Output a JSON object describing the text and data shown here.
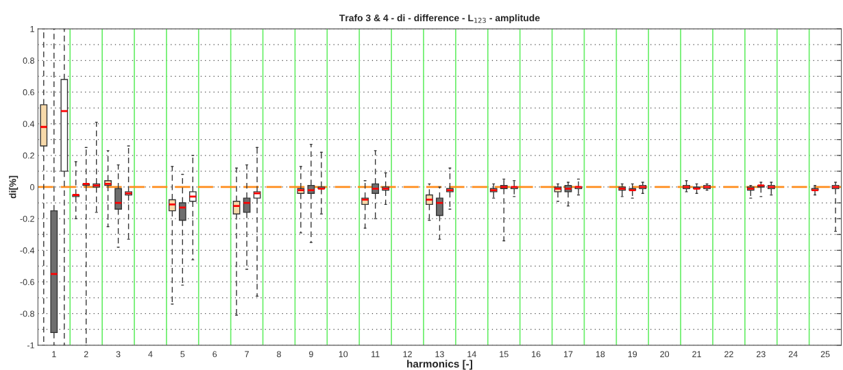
{
  "chart_data": {
    "type": "box",
    "title": "Trafo 3 & 4 - di - difference - L$_{123}$ - amplitude",
    "xlabel": "harmonics [-]",
    "ylabel": "di[%]",
    "categories": [
      "1",
      "2",
      "3",
      "4",
      "5",
      "6",
      "7",
      "8",
      "9",
      "10",
      "11",
      "12",
      "13",
      "14",
      "15",
      "16",
      "17",
      "18",
      "19",
      "20",
      "21",
      "22",
      "23",
      "24",
      "25"
    ],
    "series": [
      {
        "color": "#f7d9aa",
        "boxes": [
          {
            "low": -1,
            "q1": 0.26,
            "median": 0.38,
            "q3": 0.52,
            "high": 1
          },
          {
            "low": -0.2,
            "q1": -0.06,
            "median": -0.05,
            "q3": -0.05,
            "high": 0.16
          },
          {
            "low": -0.25,
            "q1": 0.01,
            "median": 0.02,
            "q3": 0.04,
            "high": 0.23
          },
          null,
          {
            "low": -0.74,
            "q1": -0.15,
            "median": -0.11,
            "q3": -0.08,
            "high": 0.13
          },
          null,
          {
            "low": -0.81,
            "q1": -0.17,
            "median": -0.12,
            "q3": -0.09,
            "high": 0.12
          },
          null,
          {
            "low": -0.29,
            "q1": -0.04,
            "median": -0.02,
            "q3": -0.01,
            "high": 0.13
          },
          null,
          {
            "low": -0.26,
            "q1": -0.11,
            "median": -0.08,
            "q3": -0.07,
            "high": 0.04
          },
          null,
          {
            "low": -0.21,
            "q1": -0.11,
            "median": -0.08,
            "q3": -0.05,
            "high": 0.02
          },
          null,
          {
            "low": -0.07,
            "q1": -0.03,
            "median": -0.02,
            "q3": -0.01,
            "high": 0.02
          },
          null,
          {
            "low": -0.09,
            "q1": -0.03,
            "median": -0.01,
            "q3": 0,
            "high": 0.02
          },
          null,
          {
            "low": -0.06,
            "q1": -0.02,
            "median": -0.01,
            "q3": 0,
            "high": 0.02
          },
          null,
          {
            "low": -0.03,
            "q1": -0.01,
            "median": 0,
            "q3": 0.01,
            "high": 0.04
          },
          null,
          {
            "low": -0.07,
            "q1": -0.02,
            "median": -0.01,
            "q3": 0,
            "high": 0.01
          },
          null,
          {
            "low": -0.05,
            "q1": -0.02,
            "median": -0.02,
            "q3": -0.01,
            "high": 0.01
          }
        ]
      },
      {
        "color": "#6e6e6e",
        "boxes": [
          {
            "low": -1,
            "q1": -0.92,
            "median": -0.55,
            "q3": -0.15,
            "high": 1
          },
          {
            "low": -1,
            "q1": 0.01,
            "median": 0.02,
            "q3": 0.02,
            "high": 0.25
          },
          {
            "low": -0.38,
            "q1": -0.14,
            "median": -0.1,
            "q3": -0.01,
            "high": 0.14
          },
          null,
          {
            "low": -0.62,
            "q1": -0.21,
            "median": -0.13,
            "q3": -0.1,
            "high": 0.08
          },
          null,
          {
            "low": -0.52,
            "q1": -0.16,
            "median": -0.1,
            "q3": -0.07,
            "high": 0.14
          },
          null,
          {
            "low": -0.35,
            "q1": -0.04,
            "median": -0.02,
            "q3": 0.01,
            "high": 0.27
          },
          null,
          {
            "low": -0.2,
            "q1": -0.04,
            "median": -0.01,
            "q3": 0.02,
            "high": 0.23
          },
          null,
          {
            "low": -0.33,
            "q1": -0.18,
            "median": -0.1,
            "q3": -0.07,
            "high": 0
          },
          null,
          {
            "low": -0.34,
            "q1": -0.01,
            "median": 0,
            "q3": 0.01,
            "high": 0.05
          },
          null,
          {
            "low": -0.12,
            "q1": -0.03,
            "median": -0.01,
            "q3": 0.01,
            "high": 0.03
          },
          null,
          {
            "low": -0.07,
            "q1": -0.02,
            "median": -0.02,
            "q3": -0.01,
            "high": 0.02
          },
          null,
          {
            "low": -0.04,
            "q1": -0.01,
            "median": -0.01,
            "q3": 0,
            "high": 0.02
          },
          null,
          {
            "low": -0.06,
            "q1": 0,
            "median": 0.01,
            "q3": 0.01,
            "high": 0.03
          },
          null,
          null
        ]
      },
      {
        "color": "#ffffff",
        "boxes": [
          {
            "low": -1,
            "q1": 0.1,
            "median": 0.48,
            "q3": 0.68,
            "high": 1
          },
          {
            "low": -0.16,
            "q1": 0,
            "median": 0.01,
            "q3": 0.02,
            "high": 0.41
          },
          {
            "low": -0.33,
            "q1": -0.05,
            "median": -0.04,
            "q3": -0.03,
            "high": 0.26
          },
          null,
          {
            "low": -0.46,
            "q1": -0.09,
            "median": -0.06,
            "q3": -0.03,
            "high": 0.2
          },
          null,
          {
            "low": -0.69,
            "q1": -0.07,
            "median": -0.04,
            "q3": -0.03,
            "high": 0.25
          },
          null,
          {
            "low": -0.17,
            "q1": -0.01,
            "median": -0.01,
            "q3": 0,
            "high": 0.22
          },
          null,
          {
            "low": -0.11,
            "q1": -0.02,
            "median": -0.01,
            "q3": 0,
            "high": 0.09
          },
          null,
          {
            "low": -0.14,
            "q1": -0.03,
            "median": -0.02,
            "q3": -0.01,
            "high": 0.12
          },
          null,
          {
            "low": -0.06,
            "q1": -0.01,
            "median": 0,
            "q3": 0,
            "high": 0.04
          },
          null,
          {
            "low": -0.05,
            "q1": -0.01,
            "median": 0,
            "q3": 0,
            "high": 0.05
          },
          null,
          {
            "low": -0.04,
            "q1": -0.01,
            "median": 0,
            "q3": 0.01,
            "high": 0.03
          },
          null,
          {
            "low": -0.02,
            "q1": -0.01,
            "median": 0,
            "q3": 0.01,
            "high": 0.02
          },
          null,
          {
            "low": -0.05,
            "q1": -0.01,
            "median": 0,
            "q3": 0.01,
            "high": 0.03
          },
          null,
          {
            "low": -0.28,
            "q1": -0.01,
            "median": 0,
            "q3": 0.01,
            "high": 0.03
          }
        ]
      }
    ],
    "ylim": [
      -1,
      1
    ],
    "yticks": [
      -1,
      {
        "value": -0.9,
        "label": null
      },
      -0.8,
      {
        "value": -0.7,
        "label": null
      },
      -0.6,
      {
        "value": -0.5,
        "label": null
      },
      -0.4,
      {
        "value": -0.3,
        "label": null
      },
      -0.2,
      {
        "value": -0.1,
        "label": null
      },
      0,
      {
        "value": 0.1,
        "label": null
      },
      0.2,
      {
        "value": 0.3,
        "label": null
      },
      0.4,
      {
        "value": 0.5,
        "label": null
      },
      0.6,
      {
        "value": 0.7,
        "label": null
      },
      0.8,
      {
        "value": 0.9,
        "label": null
      },
      1
    ],
    "ref_lines": [
      {
        "axis": "y",
        "value": 0,
        "color": "#ff8c1a",
        "line_style": "dashed"
      }
    ],
    "grid": true
  }
}
